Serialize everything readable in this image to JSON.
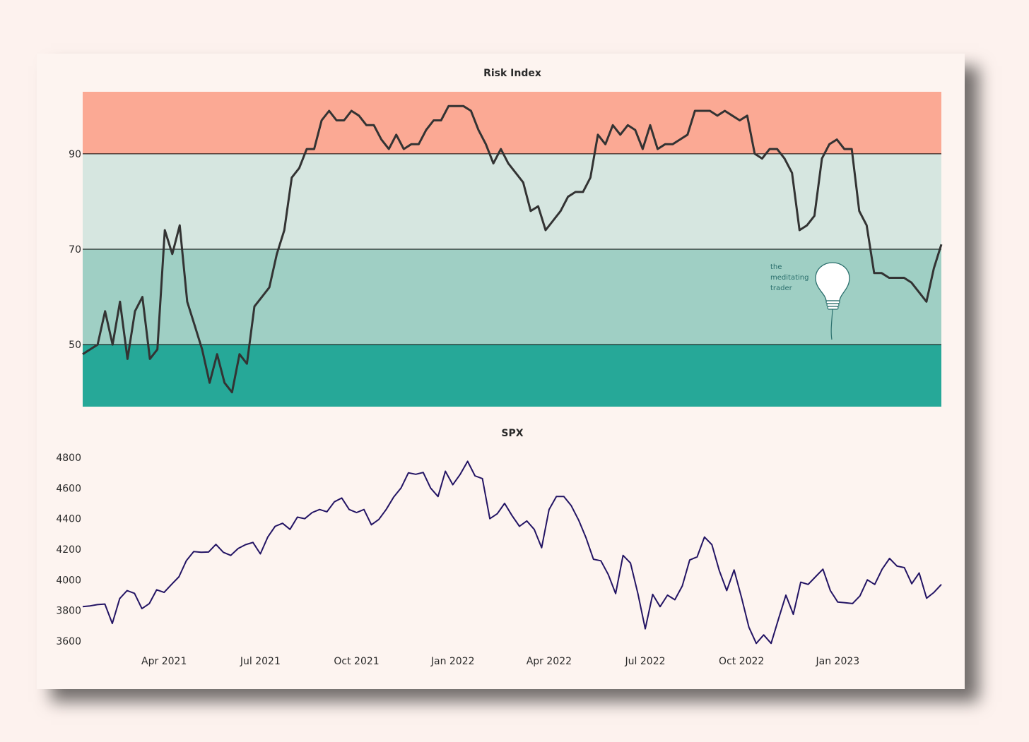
{
  "chart_data": [
    {
      "type": "line",
      "title": "Risk Index",
      "xlabel": "",
      "ylabel": "",
      "ylim": [
        37,
        103
      ],
      "yticks": [
        50,
        70,
        90
      ],
      "bands": [
        {
          "from": 37,
          "to": 50,
          "color": "#26a898"
        },
        {
          "from": 50,
          "to": 70,
          "color": "#9fcfc4"
        },
        {
          "from": 70,
          "to": 90,
          "color": "#d6e6e0"
        },
        {
          "from": 90,
          "to": 103,
          "color": "#fba994"
        }
      ],
      "line_color": "#333333",
      "series": [
        {
          "values": [
            48,
            49,
            50,
            57,
            50,
            59,
            47,
            57,
            60,
            47,
            49,
            74,
            69,
            75,
            59,
            54,
            49,
            42,
            48,
            42,
            40,
            48,
            46,
            58,
            60,
            62,
            69,
            74,
            85,
            87,
            91,
            91,
            97,
            99,
            97,
            97,
            99,
            98,
            96,
            96,
            93,
            91,
            94,
            91,
            92,
            92,
            95,
            97,
            97,
            100,
            100,
            100,
            99,
            95,
            92,
            88,
            91,
            88,
            86,
            84,
            78,
            79,
            74,
            76,
            78,
            81,
            82,
            82,
            85,
            94,
            92,
            96,
            94,
            96,
            95,
            91,
            96,
            91,
            92,
            92,
            93,
            94,
            99,
            99,
            99,
            98,
            99,
            98,
            97,
            98,
            90,
            89,
            91,
            91,
            89,
            86,
            74,
            75,
            77,
            89,
            92,
            93,
            91,
            91,
            78,
            75,
            65,
            65,
            64,
            64,
            64,
            63,
            61,
            59,
            66,
            71
          ]
        }
      ],
      "logo": {
        "lines": [
          "the",
          "meditating",
          "trader"
        ],
        "icon": "lightbulb-icon"
      }
    },
    {
      "type": "line",
      "title": "SPX",
      "xlabel": "",
      "ylabel": "",
      "ylim": [
        3500,
        4850
      ],
      "yticks": [
        3600,
        3800,
        4000,
        4200,
        4400,
        4600,
        4800
      ],
      "x_ticks": [
        "Apr 2021",
        "Jul 2021",
        "Oct 2021",
        "Jan 2022",
        "Apr 2022",
        "Jul 2022",
        "Oct 2022",
        "Jan 2023"
      ],
      "x_tick_weeks": [
        11,
        24,
        37,
        50,
        63,
        76,
        89,
        102
      ],
      "line_color": "#231464",
      "series": [
        {
          "values": [
            3825,
            3830,
            3838,
            3842,
            3715,
            3878,
            3930,
            3912,
            3812,
            3845,
            3935,
            3918,
            3970,
            4020,
            4125,
            4185,
            4180,
            4182,
            4232,
            4180,
            4160,
            4205,
            4230,
            4245,
            4170,
            4280,
            4350,
            4370,
            4330,
            4410,
            4400,
            4440,
            4460,
            4445,
            4510,
            4535,
            4460,
            4440,
            4460,
            4360,
            4395,
            4460,
            4540,
            4600,
            4700,
            4690,
            4702,
            4600,
            4545,
            4710,
            4622,
            4690,
            4775,
            4680,
            4662,
            4400,
            4432,
            4500,
            4420,
            4350,
            4385,
            4330,
            4210,
            4460,
            4545,
            4545,
            4485,
            4390,
            4275,
            4135,
            4125,
            4035,
            3910,
            4160,
            4110,
            3910,
            3680,
            3905,
            3825,
            3900,
            3870,
            3960,
            4130,
            4150,
            4280,
            4230,
            4060,
            3930,
            4065,
            3885,
            3690,
            3585,
            3640,
            3585,
            3745,
            3900,
            3775,
            3985,
            3970,
            4020,
            4070,
            3930,
            3855,
            3850,
            3845,
            3895,
            4000,
            3970,
            4070,
            4140,
            4090,
            4080,
            3975,
            4045,
            3880,
            3918,
            3970
          ]
        }
      ]
    }
  ]
}
